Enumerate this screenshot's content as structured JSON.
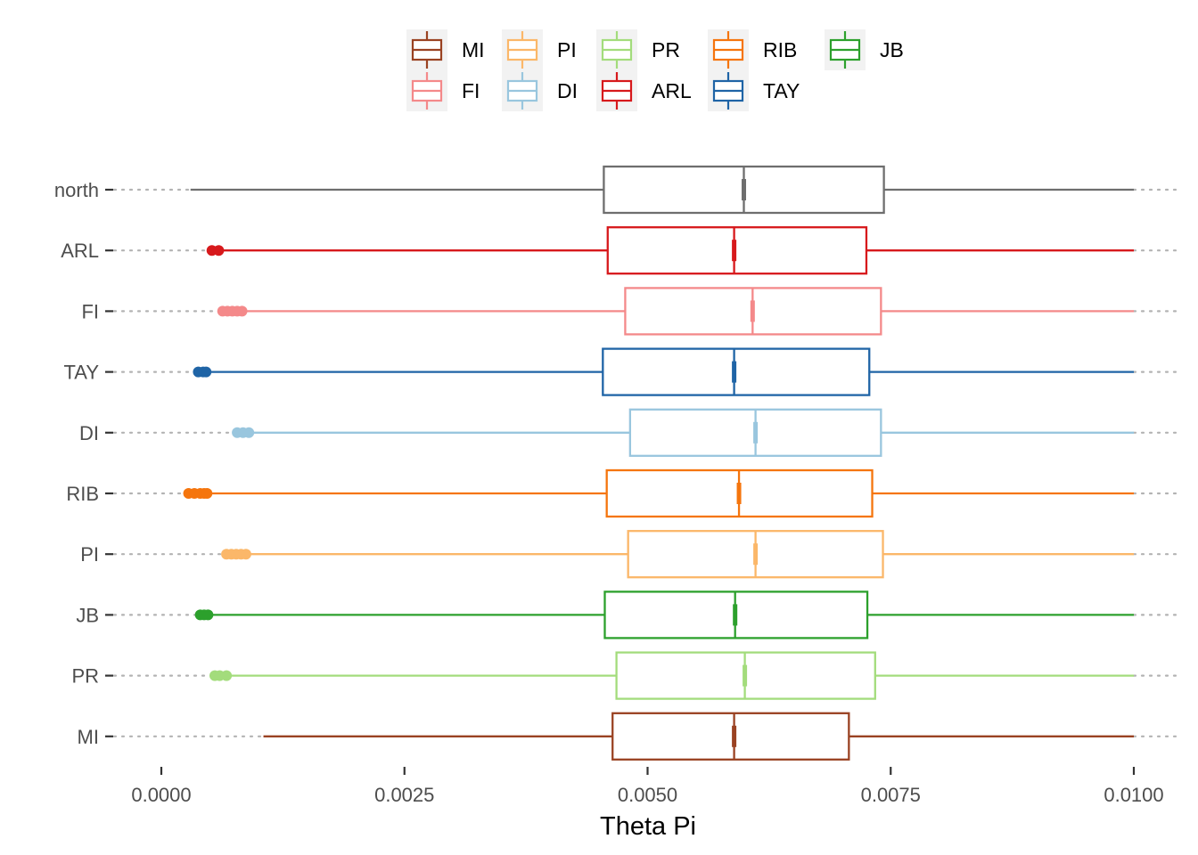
{
  "chart_data": {
    "type": "boxplot",
    "orientation": "horizontal",
    "title": "",
    "xlabel": "Theta Pi",
    "ylabel": "",
    "xlim": [
      0,
      0.01
    ],
    "x_ticks": [
      0,
      0.0025,
      0.005,
      0.0075,
      0.01
    ],
    "x_tick_labels": [
      "0.0000",
      "0.0025",
      "0.0050",
      "0.0075",
      "0.0100"
    ],
    "grid": false,
    "legend": {
      "placement": "top",
      "rows": [
        [
          "MI",
          "PI",
          "PR",
          "RIB",
          "JB"
        ],
        [
          "FI",
          "DI",
          "ARL",
          "TAY"
        ]
      ]
    },
    "series": [
      {
        "name": "north",
        "color": "#6e6e6e",
        "whisker_low": 0.0003,
        "q1": 0.00455,
        "median": 0.00599,
        "q3": 0.00743,
        "whisker_high": 0.01,
        "outliers": []
      },
      {
        "name": "ARL",
        "color": "#d7191c",
        "whisker_low": 0.0006,
        "q1": 0.00459,
        "median": 0.00589,
        "q3": 0.00725,
        "whisker_high": 0.01,
        "outliers": [
          0.00052,
          0.00059
        ]
      },
      {
        "name": "FI",
        "color": "#f4898a",
        "whisker_low": 0.00085,
        "q1": 0.00477,
        "median": 0.00608,
        "q3": 0.0074,
        "whisker_high": 0.01,
        "outliers": [
          0.00063,
          0.00068,
          0.00073,
          0.00078,
          0.00083
        ]
      },
      {
        "name": "TAY",
        "color": "#1f64a6",
        "whisker_low": 0.00048,
        "q1": 0.00454,
        "median": 0.00589,
        "q3": 0.00728,
        "whisker_high": 0.01,
        "outliers": [
          0.00038,
          0.00043,
          0.00046
        ]
      },
      {
        "name": "DI",
        "color": "#99c6de",
        "whisker_low": 0.00095,
        "q1": 0.00482,
        "median": 0.00611,
        "q3": 0.0074,
        "whisker_high": 0.01,
        "outliers": [
          0.00078,
          0.00084,
          0.0009
        ]
      },
      {
        "name": "RIB",
        "color": "#f5750d",
        "whisker_low": 0.00048,
        "q1": 0.00458,
        "median": 0.00594,
        "q3": 0.00731,
        "whisker_high": 0.01,
        "outliers": [
          0.00028,
          0.00034,
          0.0004,
          0.00044,
          0.00047
        ]
      },
      {
        "name": "PI",
        "color": "#fbb769",
        "whisker_low": 0.0009,
        "q1": 0.0048,
        "median": 0.00611,
        "q3": 0.00742,
        "whisker_high": 0.01,
        "outliers": [
          0.00067,
          0.00072,
          0.00077,
          0.00082,
          0.00087
        ]
      },
      {
        "name": "JB",
        "color": "#2ca02c",
        "whisker_low": 0.00052,
        "q1": 0.00456,
        "median": 0.0059,
        "q3": 0.00726,
        "whisker_high": 0.01,
        "outliers": [
          0.0004,
          0.00044,
          0.00048
        ]
      },
      {
        "name": "PR",
        "color": "#a3dc7c",
        "whisker_low": 0.0007,
        "q1": 0.00468,
        "median": 0.006,
        "q3": 0.00734,
        "whisker_high": 0.01,
        "outliers": [
          0.00055,
          0.0006,
          0.00067
        ]
      },
      {
        "name": "MI",
        "color": "#9a4222",
        "whisker_low": 0.00105,
        "q1": 0.00464,
        "median": 0.00589,
        "q3": 0.00707,
        "whisker_high": 0.01,
        "outliers": []
      }
    ]
  }
}
